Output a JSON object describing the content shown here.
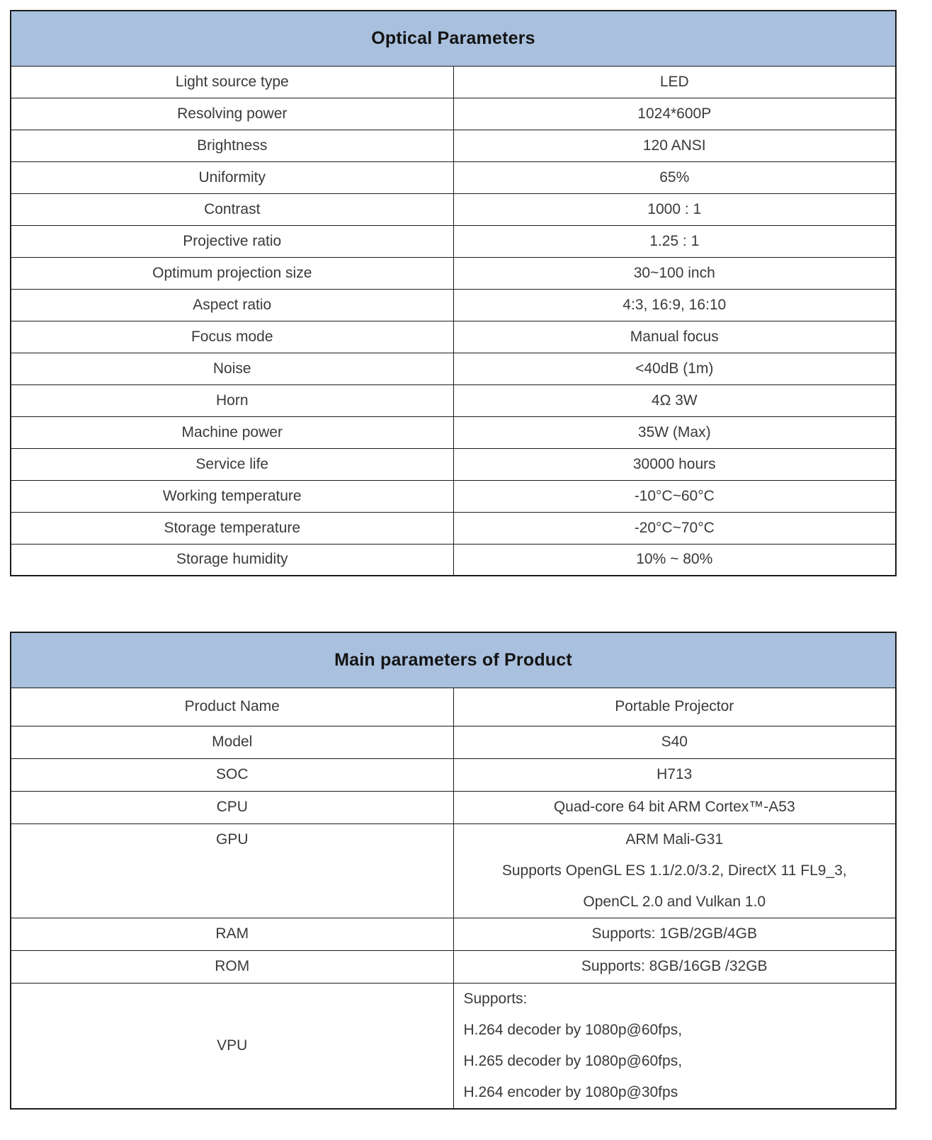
{
  "colors": {
    "header_bg": "#a9c0de",
    "border": "#1c1c1c",
    "text": "#3a3a3a",
    "background": "#ffffff"
  },
  "optical_table": {
    "title": "Optical Parameters",
    "rows": [
      {
        "label": "Light source type",
        "value": "LED"
      },
      {
        "label": "Resolving power",
        "value": "1024*600P"
      },
      {
        "label": "Brightness",
        "value": "120 ANSI"
      },
      {
        "label": "Uniformity",
        "value": "65%"
      },
      {
        "label": "Contrast",
        "value": "1000 : 1"
      },
      {
        "label": "Projective ratio",
        "value": "1.25 : 1"
      },
      {
        "label": "Optimum projection size",
        "value": "30~100 inch"
      },
      {
        "label": "Aspect ratio",
        "value": "4:3, 16:9, 16:10"
      },
      {
        "label": "Focus mode",
        "value": "Manual focus"
      },
      {
        "label": "Noise",
        "value": "<40dB (1m)"
      },
      {
        "label": "Horn",
        "value": "4Ω 3W"
      },
      {
        "label": "Machine power",
        "value": "35W (Max)"
      },
      {
        "label": "Service life",
        "value": "30000 hours"
      },
      {
        "label": "Working temperature",
        "value": "-10°C~60°C"
      },
      {
        "label": "Storage temperature",
        "value": "-20°C~70°C"
      },
      {
        "label": "Storage humidity",
        "value": "10% ~ 80%"
      }
    ]
  },
  "main_table": {
    "title": "Main parameters of Product",
    "rows": [
      {
        "label": "Product Name",
        "value_lines": [
          "Portable Projector"
        ]
      },
      {
        "label": "Model",
        "value_lines": [
          "S40"
        ]
      },
      {
        "label": "SOC",
        "value_lines": [
          "H713"
        ]
      },
      {
        "label": "CPU",
        "value_lines": [
          "Quad-core 64 bit ARM Cortex™-A53"
        ]
      },
      {
        "label": "GPU",
        "value_lines": [
          "ARM Mali-G31",
          "Supports OpenGL ES 1.1/2.0/3.2, DirectX 11 FL9_3,",
          "OpenCL 2.0 and Vulkan 1.0"
        ]
      },
      {
        "label": "RAM",
        "value_lines": [
          "Supports: 1GB/2GB/4GB"
        ]
      },
      {
        "label": "ROM",
        "value_lines": [
          "Supports: 8GB/16GB /32GB"
        ]
      },
      {
        "label": "VPU",
        "value_lines": [
          "Supports:",
          "H.264 decoder by 1080p@60fps,",
          "H.265 decoder by 1080p@60fps,",
          "H.264 encoder by 1080p@30fps"
        ]
      }
    ]
  }
}
